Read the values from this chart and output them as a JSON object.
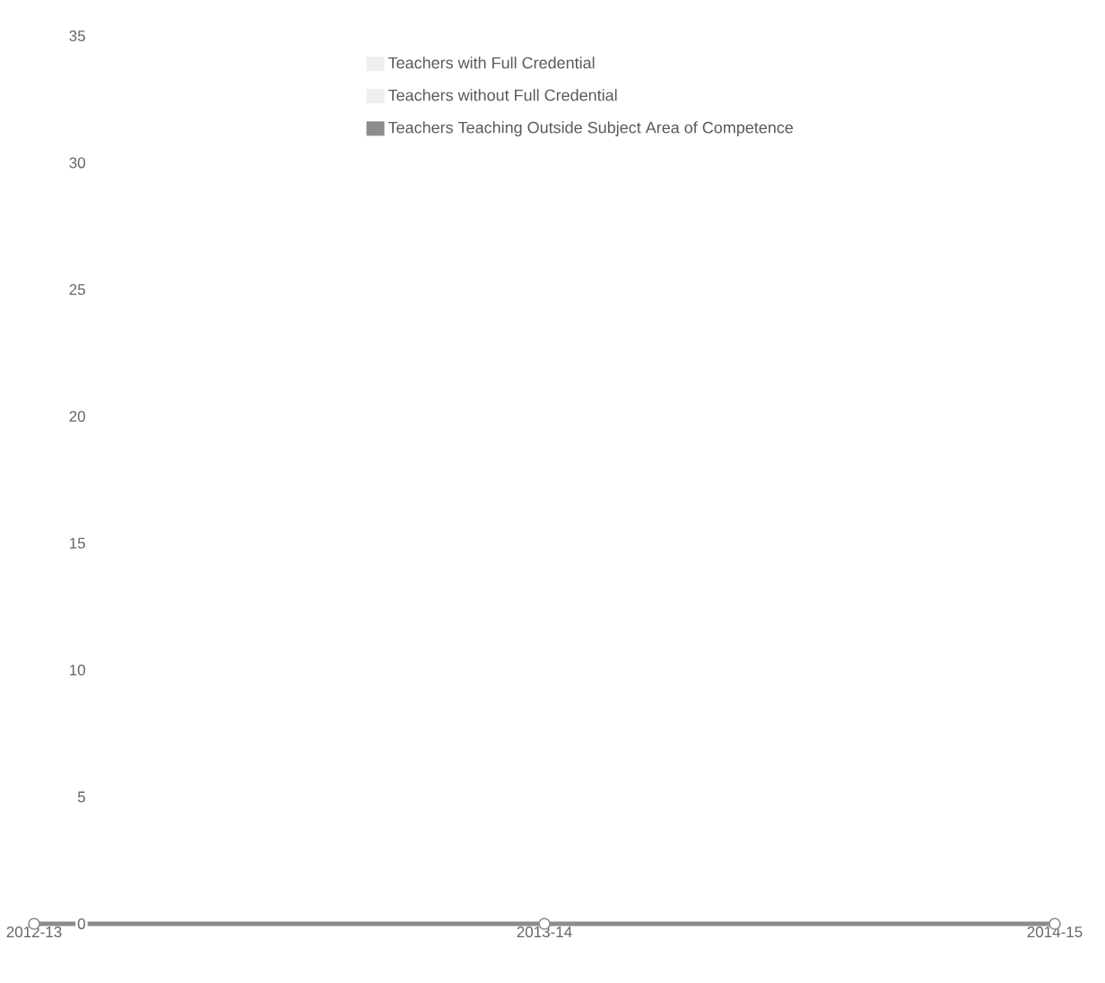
{
  "chart_data": {
    "type": "line",
    "categories": [
      "2012-13",
      "2013-14",
      "2014-15"
    ],
    "series": [
      {
        "name": "Teachers with Full Credential",
        "color": "#eeeeee",
        "values": [
          null,
          null,
          null
        ]
      },
      {
        "name": "Teachers without Full Credential",
        "color": "#eeeeee",
        "values": [
          null,
          null,
          null
        ]
      },
      {
        "name": "Teachers Teaching Outside Subject Area of Competence",
        "color": "#8c8c8c",
        "values": [
          0,
          0,
          0
        ]
      }
    ],
    "ylim": [
      0,
      35
    ],
    "yticks": [
      0,
      5,
      10,
      15,
      20,
      25,
      30,
      35
    ],
    "legend": "top",
    "marker": "circle",
    "line_style": "solid"
  }
}
